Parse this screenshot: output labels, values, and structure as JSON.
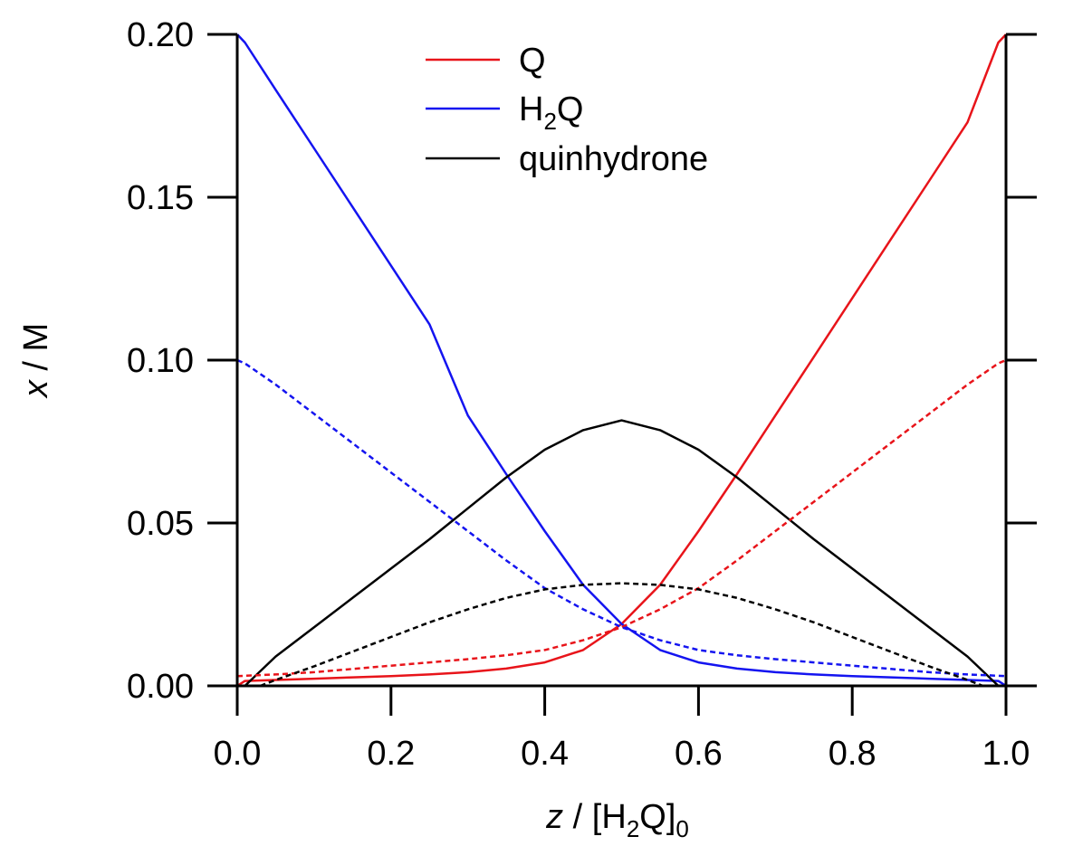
{
  "chart_data": {
    "type": "line",
    "xlabel": {
      "italic": "z",
      "pre": " / [H",
      "sub1": "2",
      "mid": "Q]",
      "sub2": "0"
    },
    "ylabel": {
      "italic": "x",
      "rest": " / M"
    },
    "xlim": [
      0,
      1
    ],
    "ylim": [
      0,
      0.2
    ],
    "x_ticks": [
      "0.0",
      "0.2",
      "0.4",
      "0.6",
      "0.8",
      "1.0"
    ],
    "x_tick_values": [
      0,
      0.2,
      0.4,
      0.6,
      0.8,
      1.0
    ],
    "y_ticks": [
      "0.00",
      "0.05",
      "0.10",
      "0.15",
      "0.20"
    ],
    "y_tick_values": [
      0,
      0.05,
      0.1,
      0.15,
      0.2
    ],
    "grid": false,
    "legend_position": "top-center",
    "legend": [
      {
        "label_main": "Q",
        "label_sub": "",
        "label_rest": "",
        "color": "#e8141a"
      },
      {
        "label_main": "H",
        "label_sub": "2",
        "label_rest": "Q",
        "color": "#1414f0"
      },
      {
        "label_main": "quinhydrone",
        "label_sub": "",
        "label_rest": "",
        "color": "#000000"
      }
    ],
    "series": [
      {
        "species": "Q",
        "color": "#e8141a",
        "dash": "solid",
        "x": [
          0,
          0.01,
          0.05,
          0.1,
          0.15,
          0.2,
          0.25,
          0.3,
          0.35,
          0.4,
          0.45,
          0.5,
          0.55,
          0.6,
          0.65,
          0.7,
          0.75,
          0.8,
          0.85,
          0.9,
          0.95,
          0.99,
          1.0
        ],
        "y": [
          0,
          0.0015,
          0.0018,
          0.0022,
          0.0026,
          0.003,
          0.0035,
          0.0042,
          0.0053,
          0.0072,
          0.011,
          0.019,
          0.031,
          0.0475,
          0.065,
          0.083,
          0.101,
          0.119,
          0.137,
          0.155,
          0.173,
          0.1975,
          0.2
        ]
      },
      {
        "species": "H2Q",
        "color": "#1414f0",
        "dash": "solid",
        "x": [
          0,
          0.01,
          0.05,
          0.1,
          0.15,
          0.2,
          0.25,
          0.3,
          0.35,
          0.4,
          0.45,
          0.5,
          0.55,
          0.6,
          0.65,
          0.7,
          0.75,
          0.8,
          0.85,
          0.9,
          0.95,
          0.99,
          1.0
        ],
        "y": [
          0.2,
          0.1975,
          0.183,
          0.165,
          0.147,
          0.129,
          0.111,
          0.083,
          0.065,
          0.0475,
          0.031,
          0.019,
          0.011,
          0.0072,
          0.0053,
          0.0042,
          0.0035,
          0.003,
          0.0026,
          0.0022,
          0.0018,
          0.0015,
          0
        ]
      },
      {
        "species": "quinhydrone",
        "color": "#000000",
        "dash": "solid",
        "x": [
          0.01,
          0.05,
          0.1,
          0.15,
          0.2,
          0.25,
          0.3,
          0.35,
          0.4,
          0.45,
          0.5,
          0.55,
          0.6,
          0.65,
          0.7,
          0.75,
          0.8,
          0.85,
          0.9,
          0.95,
          0.99
        ],
        "y": [
          0,
          0.009,
          0.018,
          0.027,
          0.036,
          0.045,
          0.0545,
          0.064,
          0.0725,
          0.0785,
          0.0815,
          0.0785,
          0.0725,
          0.064,
          0.0545,
          0.045,
          0.036,
          0.027,
          0.018,
          0.009,
          0
        ]
      },
      {
        "species": "Q",
        "color": "#e8141a",
        "dash": "dotted",
        "x": [
          0,
          0.05,
          0.1,
          0.15,
          0.2,
          0.25,
          0.3,
          0.35,
          0.4,
          0.45,
          0.5,
          0.55,
          0.6,
          0.65,
          0.7,
          0.75,
          0.8,
          0.85,
          0.9,
          0.95,
          0.99,
          1.0
        ],
        "y": [
          0.003,
          0.0035,
          0.0042,
          0.0052,
          0.0062,
          0.0072,
          0.0082,
          0.0094,
          0.011,
          0.014,
          0.018,
          0.0235,
          0.03,
          0.0385,
          0.0475,
          0.0565,
          0.0655,
          0.0745,
          0.0835,
          0.0925,
          0.099,
          0.1
        ]
      },
      {
        "species": "H2Q",
        "color": "#1414f0",
        "dash": "dotted",
        "x": [
          0,
          0.01,
          0.05,
          0.1,
          0.15,
          0.2,
          0.25,
          0.3,
          0.35,
          0.4,
          0.45,
          0.5,
          0.55,
          0.6,
          0.65,
          0.7,
          0.75,
          0.8,
          0.85,
          0.9,
          0.95,
          1.0
        ],
        "y": [
          0.1,
          0.099,
          0.0925,
          0.0835,
          0.0745,
          0.0655,
          0.0565,
          0.0475,
          0.0385,
          0.03,
          0.0235,
          0.018,
          0.014,
          0.011,
          0.0094,
          0.0082,
          0.0072,
          0.0062,
          0.0052,
          0.0042,
          0.0035,
          0.003
        ]
      },
      {
        "species": "quinhydrone",
        "color": "#000000",
        "dash": "dotted",
        "x": [
          0.03,
          0.05,
          0.1,
          0.15,
          0.2,
          0.25,
          0.3,
          0.35,
          0.4,
          0.45,
          0.5,
          0.55,
          0.6,
          0.65,
          0.7,
          0.75,
          0.8,
          0.85,
          0.9,
          0.95,
          0.97
        ],
        "y": [
          0,
          0.0018,
          0.006,
          0.0105,
          0.015,
          0.0195,
          0.0235,
          0.027,
          0.0296,
          0.031,
          0.0315,
          0.031,
          0.0296,
          0.027,
          0.0235,
          0.0195,
          0.015,
          0.0105,
          0.006,
          0.0018,
          0
        ]
      }
    ]
  }
}
